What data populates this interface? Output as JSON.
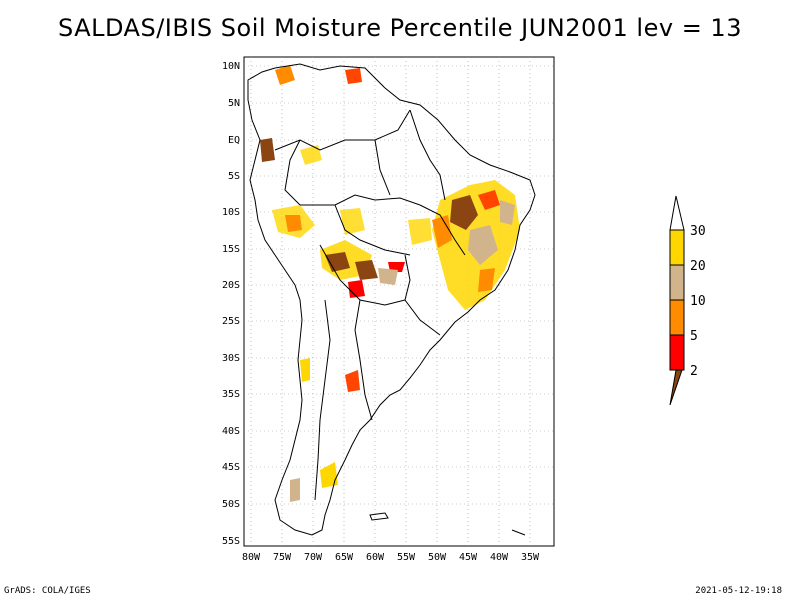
{
  "title": "SALDAS/IBIS Soil Moisture Percentile JUN2001 lev = 13",
  "lat_labels": [
    "10N",
    "5N",
    "EQ",
    "5S",
    "10S",
    "15S",
    "20S",
    "25S",
    "30S",
    "35S",
    "40S",
    "45S",
    "50S",
    "55S"
  ],
  "lon_labels": [
    "80W",
    "75W",
    "70W",
    "65W",
    "60W",
    "55W",
    "50W",
    "45W",
    "40W",
    "35W"
  ],
  "colorbar": {
    "labels": [
      "2",
      "5",
      "10",
      "20",
      "30"
    ],
    "colors": [
      "#8B4513",
      "#FF0000",
      "#FF8C00",
      "#D2B48C",
      "#FFD700",
      "#FFFFFF"
    ]
  },
  "footer": {
    "left": "GrADS: COLA/IGES",
    "right": "2021-05-12-19:18"
  }
}
